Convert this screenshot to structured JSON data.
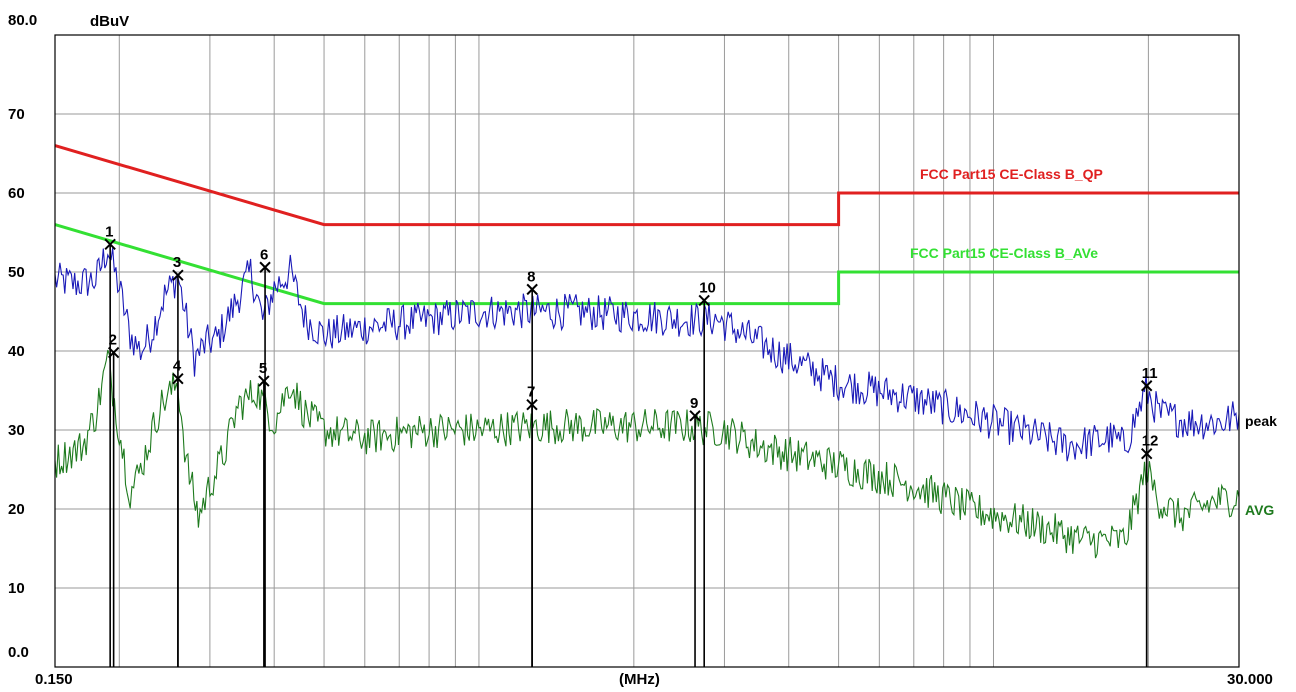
{
  "chart_data": {
    "type": "line",
    "y_unit": "dBuV",
    "x_unit": "(MHz)",
    "x_scale": "log",
    "xlim": [
      0.15,
      30.0
    ],
    "ylim": [
      0,
      80
    ],
    "x_tick_labels": {
      "min": "0.150",
      "max": "30.000"
    },
    "y_ticks": [
      {
        "value": 80,
        "label": "80.0"
      },
      {
        "value": 70,
        "label": "70"
      },
      {
        "value": 60,
        "label": "60"
      },
      {
        "value": 50,
        "label": "50"
      },
      {
        "value": 40,
        "label": "40"
      },
      {
        "value": 30,
        "label": "30"
      },
      {
        "value": 20,
        "label": "20"
      },
      {
        "value": 10,
        "label": "10"
      },
      {
        "value": 0,
        "label": "0.0"
      }
    ],
    "grid": true,
    "limit_lines": [
      {
        "name": "FCC Part15 CE-Class B_QP",
        "color": "#e02020",
        "points": [
          [
            0.15,
            66
          ],
          [
            0.5,
            56
          ],
          [
            5.0,
            56
          ],
          [
            5.0,
            60
          ],
          [
            30.0,
            60
          ]
        ]
      },
      {
        "name": "FCC Part15 CE-Class B_AVe",
        "color": "#33e033",
        "points": [
          [
            0.15,
            56
          ],
          [
            0.5,
            46
          ],
          [
            5.0,
            46
          ],
          [
            5.0,
            50
          ],
          [
            30.0,
            50
          ]
        ]
      }
    ],
    "series": [
      {
        "name": "peak",
        "color": "#1a1ab8",
        "points": [
          [
            0.15,
            49
          ],
          [
            0.165,
            48.5
          ],
          [
            0.18,
            49
          ],
          [
            0.19,
            53
          ],
          [
            0.2,
            48
          ],
          [
            0.21,
            42
          ],
          [
            0.22,
            40
          ],
          [
            0.23,
            42
          ],
          [
            0.245,
            47
          ],
          [
            0.26,
            49.5
          ],
          [
            0.27,
            44
          ],
          [
            0.28,
            39
          ],
          [
            0.295,
            41
          ],
          [
            0.31,
            41.5
          ],
          [
            0.33,
            45
          ],
          [
            0.36,
            50
          ],
          [
            0.38,
            44
          ],
          [
            0.4,
            48
          ],
          [
            0.43,
            50
          ],
          [
            0.46,
            44
          ],
          [
            0.5,
            42
          ],
          [
            0.6,
            43
          ],
          [
            0.8,
            44
          ],
          [
            1.0,
            45
          ],
          [
            1.3,
            45
          ],
          [
            1.5,
            45
          ],
          [
            2.0,
            44.5
          ],
          [
            2.5,
            44
          ],
          [
            2.9,
            44
          ],
          [
            3.3,
            42
          ],
          [
            4.0,
            39
          ],
          [
            5.0,
            36
          ],
          [
            7.0,
            34
          ],
          [
            10.0,
            31
          ],
          [
            14.0,
            28
          ],
          [
            17.0,
            29
          ],
          [
            18.0,
            28
          ],
          [
            19.8,
            35
          ],
          [
            21.0,
            32
          ],
          [
            24.0,
            31
          ],
          [
            28.0,
            31
          ],
          [
            30.0,
            32
          ]
        ]
      },
      {
        "name": "AVG",
        "color": "#1e7a1e",
        "points": [
          [
            0.15,
            26
          ],
          [
            0.17,
            28
          ],
          [
            0.18,
            32
          ],
          [
            0.19,
            39
          ],
          [
            0.2,
            30
          ],
          [
            0.21,
            22
          ],
          [
            0.22,
            25
          ],
          [
            0.24,
            33
          ],
          [
            0.26,
            36
          ],
          [
            0.27,
            26
          ],
          [
            0.285,
            19
          ],
          [
            0.3,
            23
          ],
          [
            0.32,
            27
          ],
          [
            0.34,
            33
          ],
          [
            0.37,
            35
          ],
          [
            0.4,
            31
          ],
          [
            0.43,
            36
          ],
          [
            0.46,
            32
          ],
          [
            0.5,
            30
          ],
          [
            0.6,
            29
          ],
          [
            0.8,
            30
          ],
          [
            1.0,
            30
          ],
          [
            1.3,
            30.5
          ],
          [
            2.0,
            30.5
          ],
          [
            2.5,
            30.5
          ],
          [
            3.0,
            30
          ],
          [
            3.5,
            28
          ],
          [
            4.0,
            27
          ],
          [
            5.0,
            25.5
          ],
          [
            7.0,
            23
          ],
          [
            9.0,
            20
          ],
          [
            12.0,
            18
          ],
          [
            15.0,
            16
          ],
          [
            18.0,
            16
          ],
          [
            19.8,
            25
          ],
          [
            21.0,
            21
          ],
          [
            23.0,
            19
          ],
          [
            27.0,
            21
          ],
          [
            30.0,
            21.5
          ]
        ]
      }
    ],
    "markers": [
      {
        "label": "1",
        "x": 0.192,
        "y": 53.5
      },
      {
        "label": "2",
        "x": 0.195,
        "y": 39.8
      },
      {
        "label": "3",
        "x": 0.26,
        "y": 49.6
      },
      {
        "label": "4",
        "x": 0.26,
        "y": 36.5
      },
      {
        "label": "5",
        "x": 0.382,
        "y": 36.2
      },
      {
        "label": "6",
        "x": 0.384,
        "y": 50.6
      },
      {
        "label": "7",
        "x": 1.268,
        "y": 33.2
      },
      {
        "label": "8",
        "x": 1.269,
        "y": 47.8
      },
      {
        "label": "9",
        "x": 2.63,
        "y": 31.8
      },
      {
        "label": "10",
        "x": 2.74,
        "y": 46.4
      },
      {
        "label": "11",
        "x": 19.85,
        "y": 35.6
      },
      {
        "label": "12",
        "x": 19.85,
        "y": 27.0
      }
    ]
  }
}
